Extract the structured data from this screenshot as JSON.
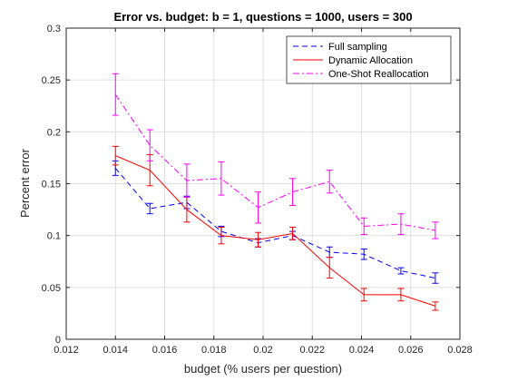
{
  "chart_data": {
    "type": "line",
    "title": "Error vs. budget: b = 1, questions = 1000, users = 300",
    "xlabel": "budget (% users per question)",
    "ylabel": "Percent error",
    "xlim": [
      0.012,
      0.028
    ],
    "ylim": [
      0,
      0.3
    ],
    "xticks": [
      0.012,
      0.014,
      0.016,
      0.018,
      0.02,
      0.022,
      0.024,
      0.026,
      0.028
    ],
    "xtick_labels": [
      "0.012",
      "0.014",
      "0.016",
      "0.018",
      "0.02",
      "0.022",
      "0.024",
      "0.026",
      "0.028"
    ],
    "yticks": [
      0,
      0.05,
      0.1,
      0.15,
      0.2,
      0.25,
      0.3
    ],
    "ytick_labels": [
      "0",
      "0.05",
      "0.1",
      "0.15",
      "0.2",
      "0.25",
      "0.3"
    ],
    "grid": true,
    "legend_position": "top-right",
    "x": [
      0.014,
      0.0154,
      0.0169,
      0.0183,
      0.0198,
      0.0212,
      0.0227,
      0.0241,
      0.0256,
      0.027
    ],
    "series": [
      {
        "name": "Full sampling",
        "color": "#0000ff",
        "dash": "dashed",
        "values": [
          0.165,
          0.126,
          0.132,
          0.104,
          0.093,
          0.1,
          0.084,
          0.082,
          0.066,
          0.059
        ],
        "errors": [
          0.007,
          0.005,
          0.006,
          0.005,
          0.004,
          0.004,
          0.005,
          0.005,
          0.003,
          0.005
        ]
      },
      {
        "name": "Dynamic Allocation",
        "color": "#ff0000",
        "dash": "solid",
        "values": [
          0.177,
          0.163,
          0.125,
          0.1,
          0.096,
          0.102,
          0.069,
          0.043,
          0.043,
          0.032
        ],
        "errors": [
          0.009,
          0.015,
          0.012,
          0.008,
          0.007,
          0.006,
          0.01,
          0.006,
          0.006,
          0.004
        ]
      },
      {
        "name": "One-Shot Reallocation",
        "color": "#ff00ff",
        "dash": "dashdot",
        "values": [
          0.236,
          0.187,
          0.153,
          0.155,
          0.127,
          0.142,
          0.152,
          0.109,
          0.111,
          0.105
        ],
        "errors": [
          0.02,
          0.015,
          0.016,
          0.016,
          0.015,
          0.013,
          0.011,
          0.008,
          0.01,
          0.008
        ]
      }
    ]
  }
}
